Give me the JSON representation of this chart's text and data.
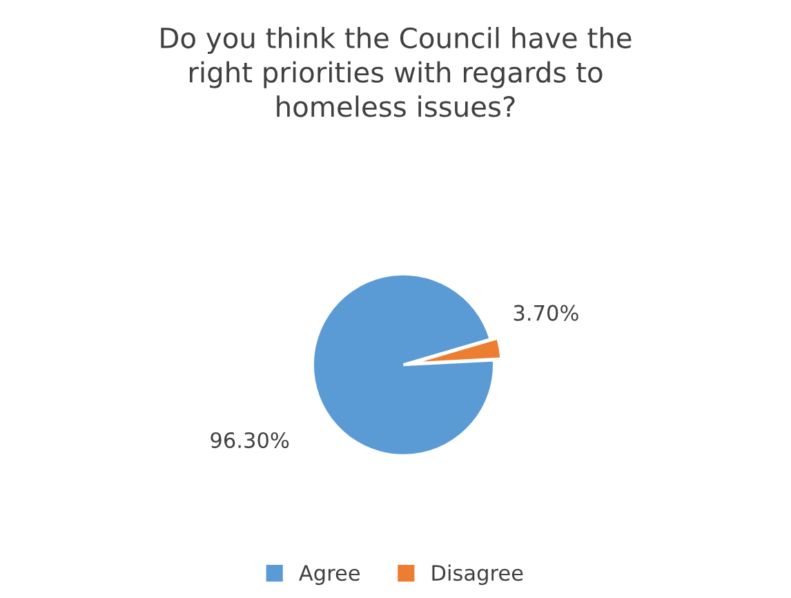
{
  "chart_data": {
    "type": "pie",
    "title": "Do you think the Council have the\nright priorities with regards to\nhomeless issues?",
    "categories": [
      "Agree",
      "Disagree"
    ],
    "values": [
      96.3,
      3.7
    ],
    "colors": [
      "#5b9bd5",
      "#ed7d31"
    ],
    "value_labels": [
      "96.30%",
      "3.70%"
    ],
    "legend": "bottom"
  }
}
